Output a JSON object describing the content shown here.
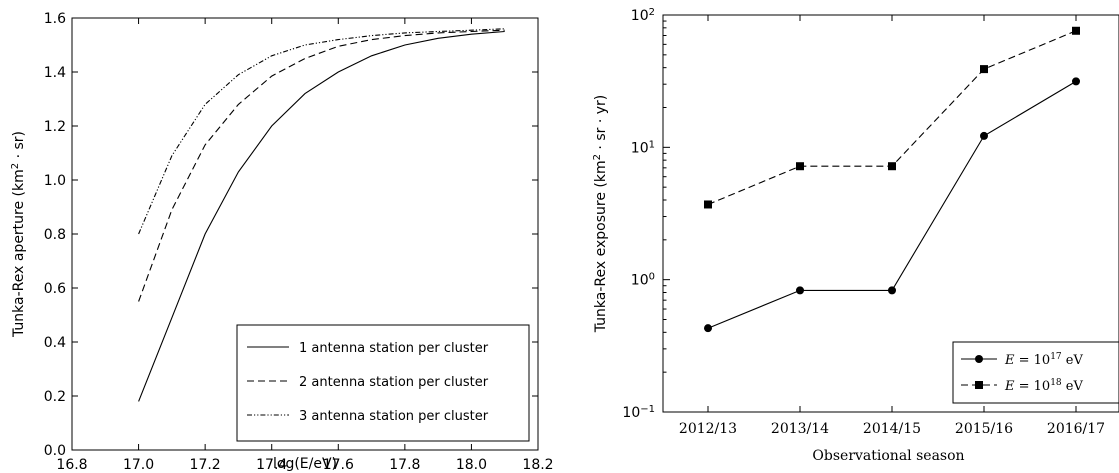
{
  "chart_data": [
    {
      "type": "line",
      "title": "",
      "xlabel": "log(E/eV)",
      "ylabel": "Tunka-Rex aperture (km² · sr)",
      "ylabel_parts": [
        "Tunka-Rex aperture (km",
        "2",
        " · sr)"
      ],
      "xlim": [
        16.8,
        18.2
      ],
      "ylim": [
        0.0,
        1.6
      ],
      "xticks": [
        "16.8",
        "17.0",
        "17.2",
        "17.4",
        "17.6",
        "17.8",
        "18.0",
        "18.2"
      ],
      "yticks": [
        "0.0",
        "0.2",
        "0.4",
        "0.6",
        "0.8",
        "1.0",
        "1.2",
        "1.4",
        "1.6"
      ],
      "grid": false,
      "legend_position": "lower-right",
      "series": [
        {
          "name": "1 antenna station per cluster",
          "line_style": "solid",
          "x": [
            17.0,
            17.1,
            17.2,
            17.3,
            17.4,
            17.5,
            17.6,
            17.7,
            17.8,
            17.9,
            18.0,
            18.1
          ],
          "y": [
            0.18,
            0.49,
            0.8,
            1.03,
            1.2,
            1.32,
            1.4,
            1.46,
            1.5,
            1.525,
            1.54,
            1.55
          ]
        },
        {
          "name": "2 antenna station per cluster",
          "line_style": "dashed",
          "x": [
            17.0,
            17.1,
            17.2,
            17.3,
            17.4,
            17.5,
            17.6,
            17.7,
            17.8,
            17.9,
            18.0,
            18.1
          ],
          "y": [
            0.55,
            0.89,
            1.13,
            1.28,
            1.385,
            1.45,
            1.495,
            1.52,
            1.535,
            1.545,
            1.55,
            1.555
          ]
        },
        {
          "name": "3 antenna station per cluster",
          "line_style": "dash-dot-dot",
          "x": [
            17.0,
            17.1,
            17.2,
            17.3,
            17.4,
            17.5,
            17.6,
            17.7,
            17.8,
            17.9,
            18.0,
            18.1
          ],
          "y": [
            0.8,
            1.09,
            1.28,
            1.39,
            1.46,
            1.5,
            1.52,
            1.535,
            1.545,
            1.55,
            1.555,
            1.56
          ]
        }
      ]
    },
    {
      "type": "line",
      "title": "",
      "xlabel": "Observational season",
      "ylabel": "Tunka-Rex exposure (km² · sr · yr)",
      "ylabel_parts": [
        "Tunka-Rex exposure (km",
        "2",
        " · sr · yr)"
      ],
      "yscale": "log",
      "ylim": [
        0.1,
        100
      ],
      "yticks": [
        {
          "base": "10",
          "exp": "2",
          "value": 100
        },
        {
          "base": "10",
          "exp": "1",
          "value": 10
        },
        {
          "base": "10",
          "exp": "0",
          "value": 1
        },
        {
          "base": "10",
          "exp": "−1",
          "value": 0.1
        }
      ],
      "categories": [
        "2012/13",
        "2013/14",
        "2014/15",
        "2015/16",
        "2016/17"
      ],
      "grid": false,
      "legend_position": "lower-right",
      "series": [
        {
          "name": "E = 10^17 eV",
          "legend": {
            "var": "E",
            "eq": " = 10",
            "exp": "17",
            "unit": " eV"
          },
          "marker": "circle",
          "line_style": "solid",
          "values": [
            0.43,
            0.83,
            0.83,
            12.2,
            31.5
          ]
        },
        {
          "name": "E = 10^18 eV",
          "legend": {
            "var": "E",
            "eq": " = 10",
            "exp": "18",
            "unit": " eV"
          },
          "marker": "square",
          "line_style": "dashed",
          "values": [
            3.7,
            7.2,
            7.2,
            39.0,
            76.0
          ]
        }
      ]
    }
  ]
}
